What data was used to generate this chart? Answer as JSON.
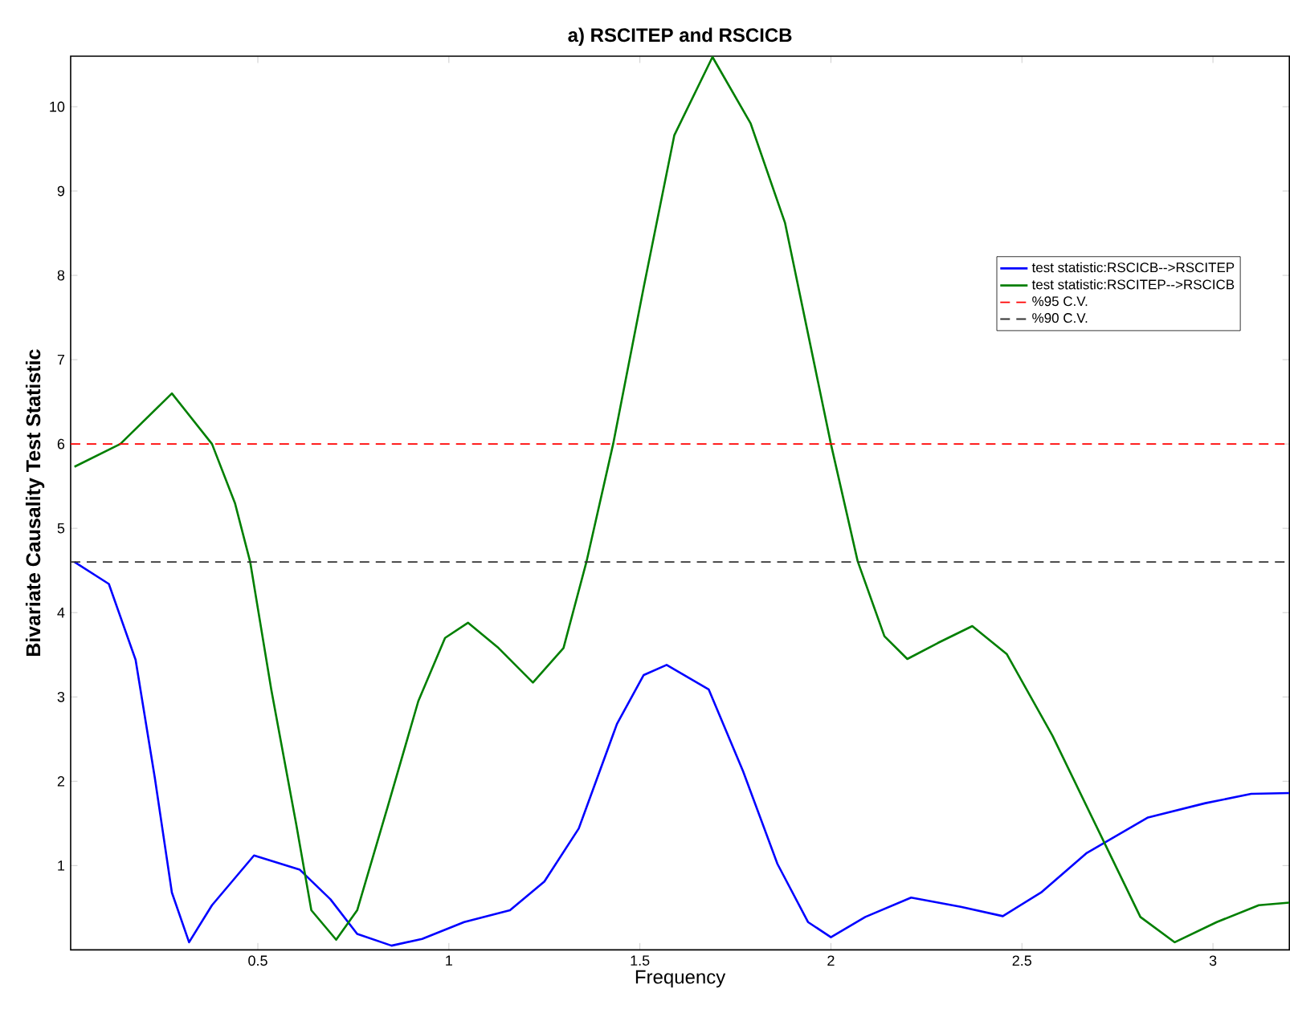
{
  "chart_data": {
    "type": "line",
    "title": "a) RSCITEP and RSCICB",
    "xlabel": "Frequency",
    "ylabel": "Bivariate Causality Test Statistic",
    "xlim": [
      0.01,
      3.2
    ],
    "ylim": [
      0,
      10.6
    ],
    "xticks": [
      0.5,
      1,
      1.5,
      2,
      2.5,
      3
    ],
    "yticks": [
      1,
      2,
      3,
      4,
      5,
      6,
      7,
      8,
      9,
      10
    ],
    "grid": false,
    "legend": "top right",
    "marker": "none",
    "line_style": "solid",
    "series": [
      {
        "name": "test statistic:RSCICB-->RSCITEP",
        "color": "#0000ff",
        "x": [
          0.02,
          0.11,
          0.18,
          0.23,
          0.275,
          0.32,
          0.38,
          0.49,
          0.61,
          0.69,
          0.76,
          0.85,
          0.93,
          1.04,
          1.16,
          1.25,
          1.34,
          1.44,
          1.51,
          1.57,
          1.68,
          1.77,
          1.86,
          1.94,
          2.0,
          2.09,
          2.21,
          2.34,
          2.45,
          2.55,
          2.67,
          2.83,
          2.98,
          3.1,
          3.2
        ],
        "values": [
          4.6,
          4.34,
          3.44,
          2.05,
          0.68,
          0.09,
          0.53,
          1.12,
          0.95,
          0.6,
          0.19,
          0.05,
          0.13,
          0.33,
          0.47,
          0.81,
          1.44,
          2.68,
          3.26,
          3.38,
          3.09,
          2.12,
          1.02,
          0.33,
          0.15,
          0.39,
          0.62,
          0.51,
          0.4,
          0.68,
          1.15,
          1.57,
          1.74,
          1.85,
          1.86
        ]
      },
      {
        "name": "test statistic:RSCITEP-->RSCICB",
        "color": "#007f00",
        "x": [
          0.02,
          0.14,
          0.275,
          0.38,
          0.44,
          0.48,
          0.535,
          0.6,
          0.64,
          0.705,
          0.76,
          0.84,
          0.92,
          0.99,
          1.05,
          1.13,
          1.22,
          1.3,
          1.36,
          1.43,
          1.51,
          1.59,
          1.69,
          1.79,
          1.88,
          2.0,
          2.07,
          2.14,
          2.2,
          2.28,
          2.37,
          2.46,
          2.58,
          2.72,
          2.81,
          2.9,
          3.01,
          3.12,
          3.2
        ],
        "values": [
          5.73,
          6.0,
          6.6,
          6.0,
          5.3,
          4.6,
          3.09,
          1.5,
          0.47,
          0.12,
          0.47,
          1.7,
          2.95,
          3.7,
          3.88,
          3.58,
          3.17,
          3.58,
          4.6,
          6.0,
          7.86,
          9.66,
          10.59,
          9.8,
          8.62,
          6.0,
          4.61,
          3.72,
          3.45,
          3.64,
          3.84,
          3.51,
          2.54,
          1.23,
          0.39,
          0.09,
          0.33,
          0.53,
          0.56
        ]
      }
    ],
    "ref_lines": [
      {
        "axis": "y",
        "value": 6,
        "label": "%95 C.V.",
        "color": "#ff0000",
        "line_style": "dashed"
      },
      {
        "axis": "y",
        "value": 4.6,
        "label": "%90 C.V.",
        "color": "#333333",
        "line_style": "dashed"
      }
    ]
  }
}
